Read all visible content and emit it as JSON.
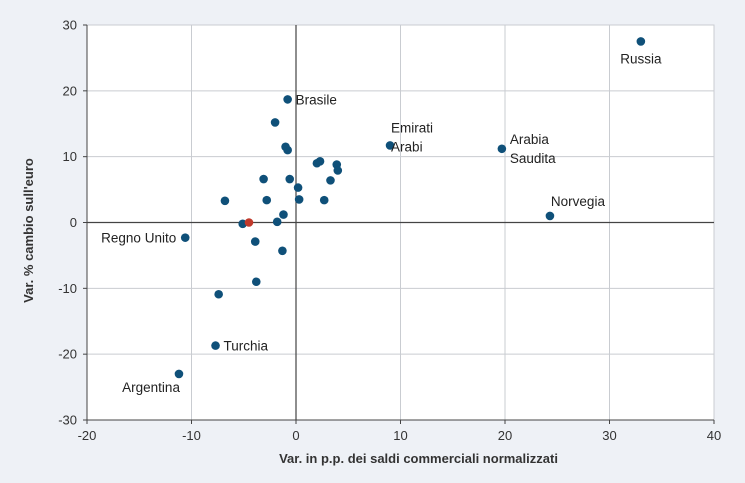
{
  "colors": {
    "background": "#eef1f6",
    "plot_background": "#ffffff",
    "grid": "#c9ccd1",
    "zero_line": "#444444",
    "point": "#0f5079",
    "highlight_point": "#c0392b"
  },
  "chart_data": {
    "type": "scatter",
    "xlabel": "Var. in p.p. dei saldi commerciali normalizzati",
    "ylabel": "Var. % cambio sull'euro",
    "xlim": [
      -20,
      40
    ],
    "ylim": [
      -30,
      30
    ],
    "x_ticks": [
      -20,
      -10,
      0,
      10,
      20,
      30,
      40
    ],
    "y_ticks": [
      -30,
      -20,
      -10,
      0,
      10,
      20,
      30
    ],
    "x_tick_labels": [
      "-20",
      "-10",
      "0",
      "10",
      "20",
      "30",
      "40"
    ],
    "y_tick_labels": [
      "-30",
      "-20",
      "-10",
      "0",
      "10",
      "20",
      "30"
    ],
    "grid": true,
    "points": [
      {
        "x": 33.0,
        "y": 27.5,
        "label": "Russia",
        "label_pos": "below"
      },
      {
        "x": -0.8,
        "y": 18.7,
        "label": "Brasile",
        "label_pos": "right"
      },
      {
        "x": 9.0,
        "y": 11.7,
        "label": "Emirati\nArabi",
        "label_pos": "above-right"
      },
      {
        "x": 19.7,
        "y": 11.2,
        "label": "Arabia\nSaudita",
        "label_pos": "right"
      },
      {
        "x": 24.3,
        "y": 1.0,
        "label": "Norvegia",
        "label_pos": "above-right"
      },
      {
        "x": -10.6,
        "y": -2.3,
        "label": "Regno Unito",
        "label_pos": "left"
      },
      {
        "x": -7.7,
        "y": -18.7,
        "label": "Turchia",
        "label_pos": "right"
      },
      {
        "x": -11.2,
        "y": -23.0,
        "label": "Argentina",
        "label_pos": "below-left"
      },
      {
        "x": -2.0,
        "y": 15.2
      },
      {
        "x": -1.0,
        "y": 11.5
      },
      {
        "x": -0.8,
        "y": 11.0
      },
      {
        "x": 2.0,
        "y": 9.0
      },
      {
        "x": 2.3,
        "y": 9.3
      },
      {
        "x": 3.9,
        "y": 8.8
      },
      {
        "x": 4.0,
        "y": 7.9
      },
      {
        "x": -3.1,
        "y": 6.6
      },
      {
        "x": -0.6,
        "y": 6.6
      },
      {
        "x": 3.3,
        "y": 6.4
      },
      {
        "x": 0.2,
        "y": 5.3
      },
      {
        "x": -6.8,
        "y": 3.3
      },
      {
        "x": -2.8,
        "y": 3.4
      },
      {
        "x": 0.3,
        "y": 3.5
      },
      {
        "x": 2.7,
        "y": 3.4
      },
      {
        "x": -1.2,
        "y": 1.2
      },
      {
        "x": -1.8,
        "y": 0.1
      },
      {
        "x": -5.1,
        "y": -0.2
      },
      {
        "x": -3.9,
        "y": -2.9
      },
      {
        "x": -1.3,
        "y": -4.3
      },
      {
        "x": -3.8,
        "y": -9.0
      },
      {
        "x": -7.4,
        "y": -10.9
      },
      {
        "x": -4.5,
        "y": 0.0,
        "highlight": true
      }
    ]
  }
}
